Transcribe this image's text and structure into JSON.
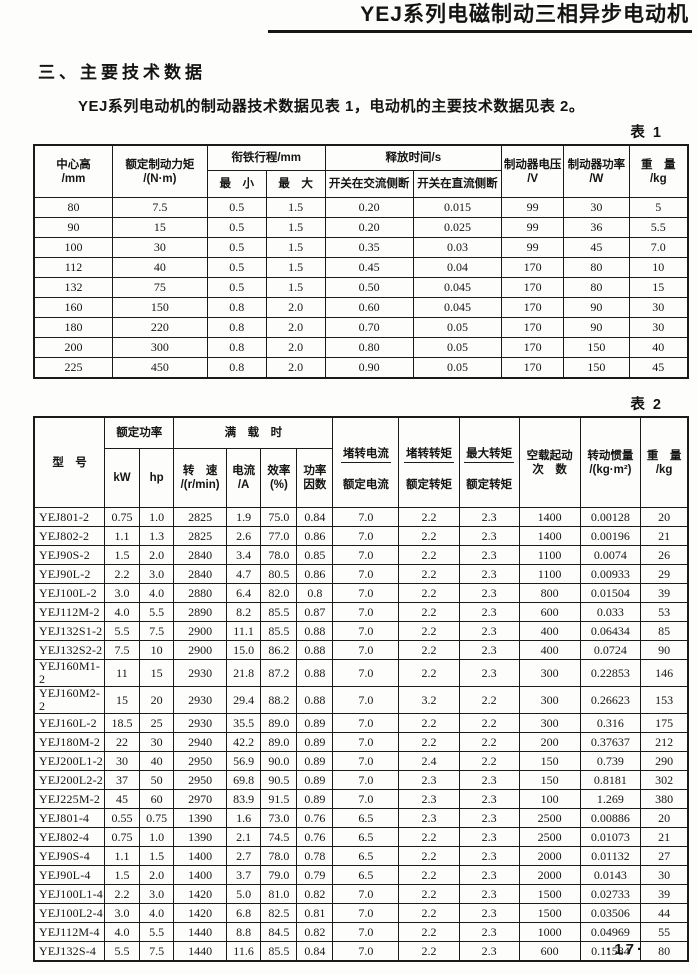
{
  "page": {
    "header_title": "YEJ系列电磁制动三相异步电动机",
    "section_title": "三、主要技术数据",
    "intro": "YEJ系列电动机的制动器技术数据见表 1，电动机的主要技术数据见表 2。",
    "page_number": "·17·"
  },
  "table1": {
    "caption": "表 1",
    "head": {
      "center_height": "中心高\n/mm",
      "rated_brake_torque": "额定制动力矩\n/(N·m)",
      "armature_stroke": "衔铁行程/mm",
      "min": "最　小",
      "max": "最　大",
      "release_time": "释放时间/s",
      "ac_side_break": "开关在交流侧断",
      "dc_side_break": "开关在直流侧断",
      "brake_voltage": "制动器电压\n/V",
      "brake_power": "制动器功率\n/W",
      "weight": "重　量\n/kg"
    },
    "rows": [
      [
        "80",
        "7.5",
        "0.5",
        "1.5",
        "0.20",
        "0.015",
        "99",
        "30",
        "5"
      ],
      [
        "90",
        "15",
        "0.5",
        "1.5",
        "0.20",
        "0.025",
        "99",
        "36",
        "5.5"
      ],
      [
        "100",
        "30",
        "0.5",
        "1.5",
        "0.35",
        "0.03",
        "99",
        "45",
        "7.0"
      ],
      [
        "112",
        "40",
        "0.5",
        "1.5",
        "0.45",
        "0.04",
        "170",
        "80",
        "10"
      ],
      [
        "132",
        "75",
        "0.5",
        "1.5",
        "0.50",
        "0.045",
        "170",
        "80",
        "15"
      ],
      [
        "160",
        "150",
        "0.8",
        "2.0",
        "0.60",
        "0.045",
        "170",
        "90",
        "30"
      ],
      [
        "180",
        "220",
        "0.8",
        "2.0",
        "0.70",
        "0.05",
        "170",
        "90",
        "30"
      ],
      [
        "200",
        "300",
        "0.8",
        "2.0",
        "0.80",
        "0.05",
        "170",
        "150",
        "40"
      ],
      [
        "225",
        "450",
        "0.8",
        "2.0",
        "0.90",
        "0.05",
        "170",
        "150",
        "45"
      ]
    ]
  },
  "table2": {
    "caption": "表 2",
    "head": {
      "model": "型　号",
      "rated_power": "额定功率",
      "kw": "kW",
      "hp": "hp",
      "full_load": "满　载　时",
      "speed": "转　速\n/(r/min)",
      "current": "电流\n/A",
      "efficiency": "效率\n(%)",
      "power_factor": "功率\n因数",
      "stall_current_ratio": {
        "num": "堵转电流",
        "den": "额定电流"
      },
      "stall_torque_ratio": {
        "num": "堵转转矩",
        "den": "额定转矩"
      },
      "max_torque_ratio": {
        "num": "最大转矩",
        "den": "额定转矩"
      },
      "no_load_starts": "空载起动\n次　数",
      "inertia": "转动惯量\n/(kg·m²)",
      "weight": "重　量\n/kg"
    },
    "rows": [
      [
        "YEJ801-2",
        "0.75",
        "1.0",
        "2825",
        "1.9",
        "75.0",
        "0.84",
        "7.0",
        "2.2",
        "2.3",
        "1400",
        "0.00128",
        "20"
      ],
      [
        "YEJ802-2",
        "1.1",
        "1.3",
        "2825",
        "2.6",
        "77.0",
        "0.86",
        "7.0",
        "2.2",
        "2.3",
        "1400",
        "0.00196",
        "21"
      ],
      [
        "YEJ90S-2",
        "1.5",
        "2.0",
        "2840",
        "3.4",
        "78.0",
        "0.85",
        "7.0",
        "2.2",
        "2.3",
        "1100",
        "0.0074",
        "26"
      ],
      [
        "YEJ90L-2",
        "2.2",
        "3.0",
        "2840",
        "4.7",
        "80.5",
        "0.86",
        "7.0",
        "2.2",
        "2.3",
        "1100",
        "0.00933",
        "29"
      ],
      [
        "YEJ100L-2",
        "3.0",
        "4.0",
        "2880",
        "6.4",
        "82.0",
        "0.8",
        "7.0",
        "2.2",
        "2.3",
        "800",
        "0.01504",
        "39"
      ],
      [
        "YEJ112M-2",
        "4.0",
        "5.5",
        "2890",
        "8.2",
        "85.5",
        "0.87",
        "7.0",
        "2.2",
        "2.3",
        "600",
        "0.033",
        "53"
      ],
      [
        "YEJ132S1-2",
        "5.5",
        "7.5",
        "2900",
        "11.1",
        "85.5",
        "0.88",
        "7.0",
        "2.2",
        "2.3",
        "400",
        "0.06434",
        "85"
      ],
      [
        "YEJ132S2-2",
        "7.5",
        "10",
        "2900",
        "15.0",
        "86.2",
        "0.88",
        "7.0",
        "2.2",
        "2.3",
        "400",
        "0.0724",
        "90"
      ],
      [
        "YEJ160M1-2",
        "11",
        "15",
        "2930",
        "21.8",
        "87.2",
        "0.88",
        "7.0",
        "2.2",
        "2.3",
        "300",
        "0.22853",
        "146"
      ],
      [
        "YEJ160M2-2",
        "15",
        "20",
        "2930",
        "29.4",
        "88.2",
        "0.88",
        "7.0",
        "3.2",
        "2.2",
        "300",
        "0.26623",
        "153"
      ],
      [
        "YEJ160L-2",
        "18.5",
        "25",
        "2930",
        "35.5",
        "89.0",
        "0.89",
        "7.0",
        "2.2",
        "2.2",
        "300",
        "0.316",
        "175"
      ],
      [
        "YEJ180M-2",
        "22",
        "30",
        "2940",
        "42.2",
        "89.0",
        "0.89",
        "7.0",
        "2.2",
        "2.2",
        "200",
        "0.37637",
        "212"
      ],
      [
        "YEJ200L1-2",
        "30",
        "40",
        "2950",
        "56.9",
        "90.0",
        "0.89",
        "7.0",
        "2.4",
        "2.2",
        "150",
        "0.739",
        "290"
      ],
      [
        "YEJ200L2-2",
        "37",
        "50",
        "2950",
        "69.8",
        "90.5",
        "0.89",
        "7.0",
        "2.3",
        "2.3",
        "150",
        "0.8181",
        "302"
      ],
      [
        "YEJ225M-2",
        "45",
        "60",
        "2970",
        "83.9",
        "91.5",
        "0.89",
        "7.0",
        "2.3",
        "2.3",
        "100",
        "1.269",
        "380"
      ],
      [
        "YEJ801-4",
        "0.55",
        "0.75",
        "1390",
        "1.6",
        "73.0",
        "0.76",
        "6.5",
        "2.3",
        "2.3",
        "2500",
        "0.00886",
        "20"
      ],
      [
        "YEJ802-4",
        "0.75",
        "1.0",
        "1390",
        "2.1",
        "74.5",
        "0.76",
        "6.5",
        "2.2",
        "2.3",
        "2500",
        "0.01073",
        "21"
      ],
      [
        "YEJ90S-4",
        "1.1",
        "1.5",
        "1400",
        "2.7",
        "78.0",
        "0.78",
        "6.5",
        "2.2",
        "2.3",
        "2000",
        "0.01132",
        "27"
      ],
      [
        "YEJ90L-4",
        "1.5",
        "2.0",
        "1400",
        "3.7",
        "79.0",
        "0.79",
        "6.5",
        "2.2",
        "2.3",
        "2000",
        "0.0143",
        "30"
      ],
      [
        "YEJ100L1-4",
        "2.2",
        "3.0",
        "1420",
        "5.0",
        "81.0",
        "0.82",
        "7.0",
        "2.2",
        "2.3",
        "1500",
        "0.02733",
        "39"
      ],
      [
        "YEJ100L2-4",
        "3.0",
        "4.0",
        "1420",
        "6.8",
        "82.5",
        "0.81",
        "7.0",
        "2.2",
        "2.3",
        "1500",
        "0.03506",
        "44"
      ],
      [
        "YEJ112M-4",
        "4.0",
        "5.5",
        "1440",
        "8.8",
        "84.5",
        "0.82",
        "7.0",
        "2.2",
        "2.3",
        "1000",
        "0.04969",
        "55"
      ],
      [
        "YEJ132S-4",
        "5.5",
        "7.5",
        "1440",
        "11.6",
        "85.5",
        "0.84",
        "7.0",
        "2.2",
        "2.3",
        "600",
        "0.11584",
        "80"
      ]
    ]
  }
}
